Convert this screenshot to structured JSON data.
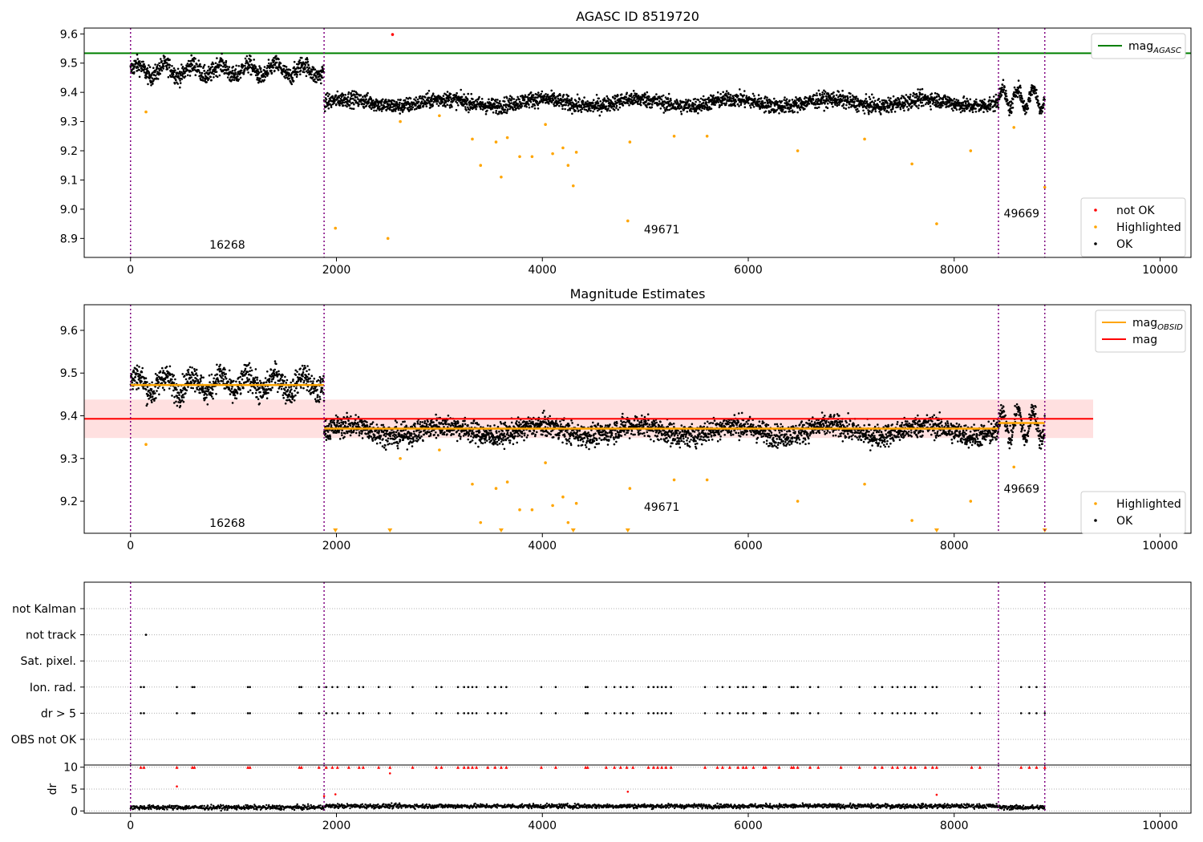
{
  "chart_data": [
    {
      "type": "scatter",
      "title": "AGASC ID 8519720",
      "xlim": [
        -450,
        10300
      ],
      "ylim": [
        8.835,
        9.62
      ],
      "xticks": [
        0,
        2000,
        4000,
        6000,
        8000,
        10000
      ],
      "yticks": [
        8.9,
        9.0,
        9.1,
        9.2,
        9.3,
        9.4,
        9.5,
        9.6
      ],
      "ytick_labels": [
        "8.9",
        "9.0",
        "9.1",
        "9.2",
        "9.3",
        "9.4",
        "9.5",
        "9.6"
      ],
      "obsid_boundaries": [
        0,
        1880,
        8430,
        8880
      ],
      "obsid_labels": [
        {
          "text": "16268",
          "x": 940,
          "y": 8.865
        },
        {
          "text": "49671",
          "x": 5160,
          "y": 8.918
        },
        {
          "text": "49669",
          "x": 8655,
          "y": 8.972
        }
      ],
      "agasc_mag": 9.534,
      "ok_segments": [
        {
          "x_start": 0,
          "x_end": 1880,
          "mean": 9.475,
          "amplitude": 0.02,
          "noise": 0.015
        },
        {
          "x_start": 1880,
          "x_end": 8430,
          "mean": 9.365,
          "amplitude": 0.012,
          "noise": 0.013
        },
        {
          "x_start": 8430,
          "x_end": 8880,
          "mean": 9.38,
          "amplitude": 0.035,
          "noise": 0.012
        }
      ],
      "not_ok_points": [
        [
          2545,
          9.598
        ]
      ],
      "highlighted_points": [
        [
          150,
          9.333
        ],
        [
          1990,
          8.935
        ],
        [
          2500,
          8.9
        ],
        [
          2620,
          9.3
        ],
        [
          3000,
          9.32
        ],
        [
          3320,
          9.24
        ],
        [
          3400,
          9.15
        ],
        [
          3550,
          9.23
        ],
        [
          3600,
          9.11
        ],
        [
          3660,
          9.245
        ],
        [
          3780,
          9.18
        ],
        [
          3900,
          9.18
        ],
        [
          4030,
          9.29
        ],
        [
          4100,
          9.19
        ],
        [
          4200,
          9.21
        ],
        [
          4250,
          9.15
        ],
        [
          4300,
          9.08
        ],
        [
          4330,
          9.195
        ],
        [
          4830,
          8.96
        ],
        [
          4850,
          9.23
        ],
        [
          5280,
          9.25
        ],
        [
          5600,
          9.25
        ],
        [
          6480,
          9.2
        ],
        [
          7130,
          9.24
        ],
        [
          7590,
          9.155
        ],
        [
          7830,
          8.95
        ],
        [
          8160,
          9.2
        ],
        [
          8580,
          9.28
        ],
        [
          8880,
          9.075
        ]
      ],
      "legend_upper": [
        {
          "label": "mag",
          "sub": "AGASC",
          "color": "#008000"
        }
      ],
      "legend_lower": [
        {
          "label": "not OK",
          "color": "#ff0000"
        },
        {
          "label": "Highlighted",
          "color": "#ffa500"
        },
        {
          "label": "OK",
          "color": "#000000"
        }
      ]
    },
    {
      "type": "scatter",
      "title": "Magnitude Estimates",
      "xlim": [
        -450,
        10300
      ],
      "ylim": [
        9.125,
        9.66
      ],
      "xticks": [
        0,
        2000,
        4000,
        6000,
        8000,
        10000
      ],
      "yticks": [
        9.2,
        9.3,
        9.4,
        9.5,
        9.6
      ],
      "ytick_labels": [
        "9.2",
        "9.3",
        "9.4",
        "9.5",
        "9.6"
      ],
      "mag": 9.393,
      "mag_band": [
        9.348,
        9.438
      ],
      "mag_line_xlim": [
        -450,
        9350
      ],
      "obsid_mags": [
        {
          "x_start": 0,
          "x_end": 1880,
          "mag": 9.472
        },
        {
          "x_start": 1880,
          "x_end": 8430,
          "mag": 9.37
        },
        {
          "x_start": 8430,
          "x_end": 8880,
          "mag": 9.383
        }
      ],
      "obsid_labels": [
        {
          "text": "16268",
          "x": 940,
          "y": 9.14
        },
        {
          "text": "49671",
          "x": 5160,
          "y": 9.178
        },
        {
          "text": "49669",
          "x": 8655,
          "y": 9.22
        }
      ],
      "below_range_markers": [
        1990,
        2520,
        3600,
        4300,
        4830,
        7830,
        8880
      ],
      "legend_upper": [
        {
          "label": "mag",
          "sub": "OBSID",
          "color": "#ffa500"
        },
        {
          "label": "mag",
          "sub": "",
          "color": "#ff0000"
        }
      ],
      "legend_lower": [
        {
          "label": "Highlighted",
          "color": "#ffa500"
        },
        {
          "label": "OK",
          "color": "#000000"
        }
      ]
    },
    {
      "type": "scatter",
      "xlim": [
        -450,
        10300
      ],
      "flag_rows": [
        "not Kalman",
        "not track",
        "Sat. pixel.",
        "Ion. rad.",
        "dr > 5",
        "OBS not OK"
      ],
      "flag_events": {
        "not track": [
          150
        ],
        "ion_rad": [
          100,
          130,
          450,
          600,
          620,
          1140,
          1160,
          1640,
          1660,
          1830,
          1900,
          1960,
          2010,
          2120,
          2220,
          2260,
          2410,
          2520,
          2740,
          2970,
          3020,
          3180,
          3240,
          3280,
          3320,
          3360,
          3470,
          3540,
          3600,
          3650,
          3990,
          4130,
          4420,
          4440,
          4620,
          4700,
          4760,
          4820,
          4880,
          5030,
          5080,
          5120,
          5160,
          5200,
          5250,
          5580,
          5700,
          5750,
          5820,
          5900,
          5950,
          5980,
          6050,
          6150,
          6170,
          6300,
          6420,
          6440,
          6480,
          6600,
          6680,
          6900,
          7080,
          7230,
          7300,
          7400,
          7450,
          7520,
          7580,
          7620,
          7720,
          7790,
          7830,
          8170,
          8250,
          8650,
          8730,
          8800,
          8880
        ]
      },
      "xticks": [
        0,
        2000,
        4000,
        6000,
        8000,
        10000
      ]
    },
    {
      "type": "scatter",
      "ylabel": "dr",
      "xlim": [
        -450,
        10300
      ],
      "ylim": [
        -0.5,
        10.5
      ],
      "yticks": [
        0,
        5,
        10
      ],
      "xticks": [
        0,
        2000,
        4000,
        6000,
        8000,
        10000
      ],
      "dr_baseline": 0.8,
      "dr_outliers": [
        [
          1880,
          3.4
        ],
        [
          1990,
          3.8
        ],
        [
          2520,
          8.6
        ],
        [
          4830,
          4.4
        ],
        [
          7830,
          3.7
        ],
        [
          450,
          5.6
        ]
      ]
    }
  ]
}
